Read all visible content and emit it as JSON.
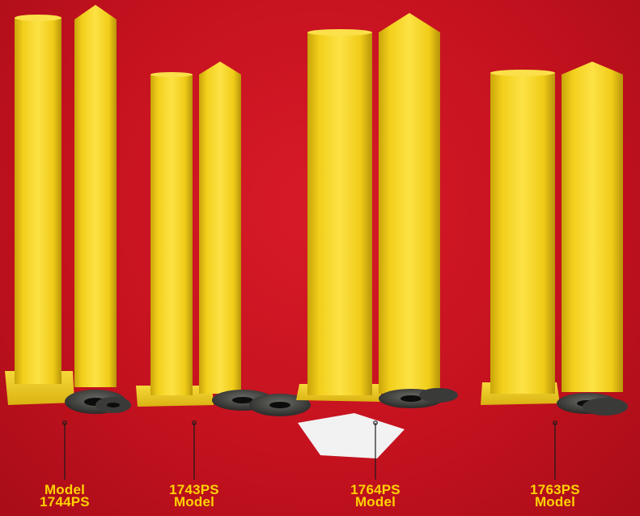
{
  "products": [
    {
      "id": "p1",
      "line1": "Model",
      "line2": "1744PS"
    },
    {
      "id": "p2",
      "line1": "1743PS",
      "line2": "Model"
    },
    {
      "id": "p3",
      "line1": "1764PS",
      "line2": "Model"
    },
    {
      "id": "p4",
      "line1": "1763PS",
      "line2": "Model"
    }
  ],
  "colors": {
    "background": "#c5121f",
    "post": "#f4d21a",
    "label": "#ffd200",
    "leader": "#1a1a1a"
  }
}
